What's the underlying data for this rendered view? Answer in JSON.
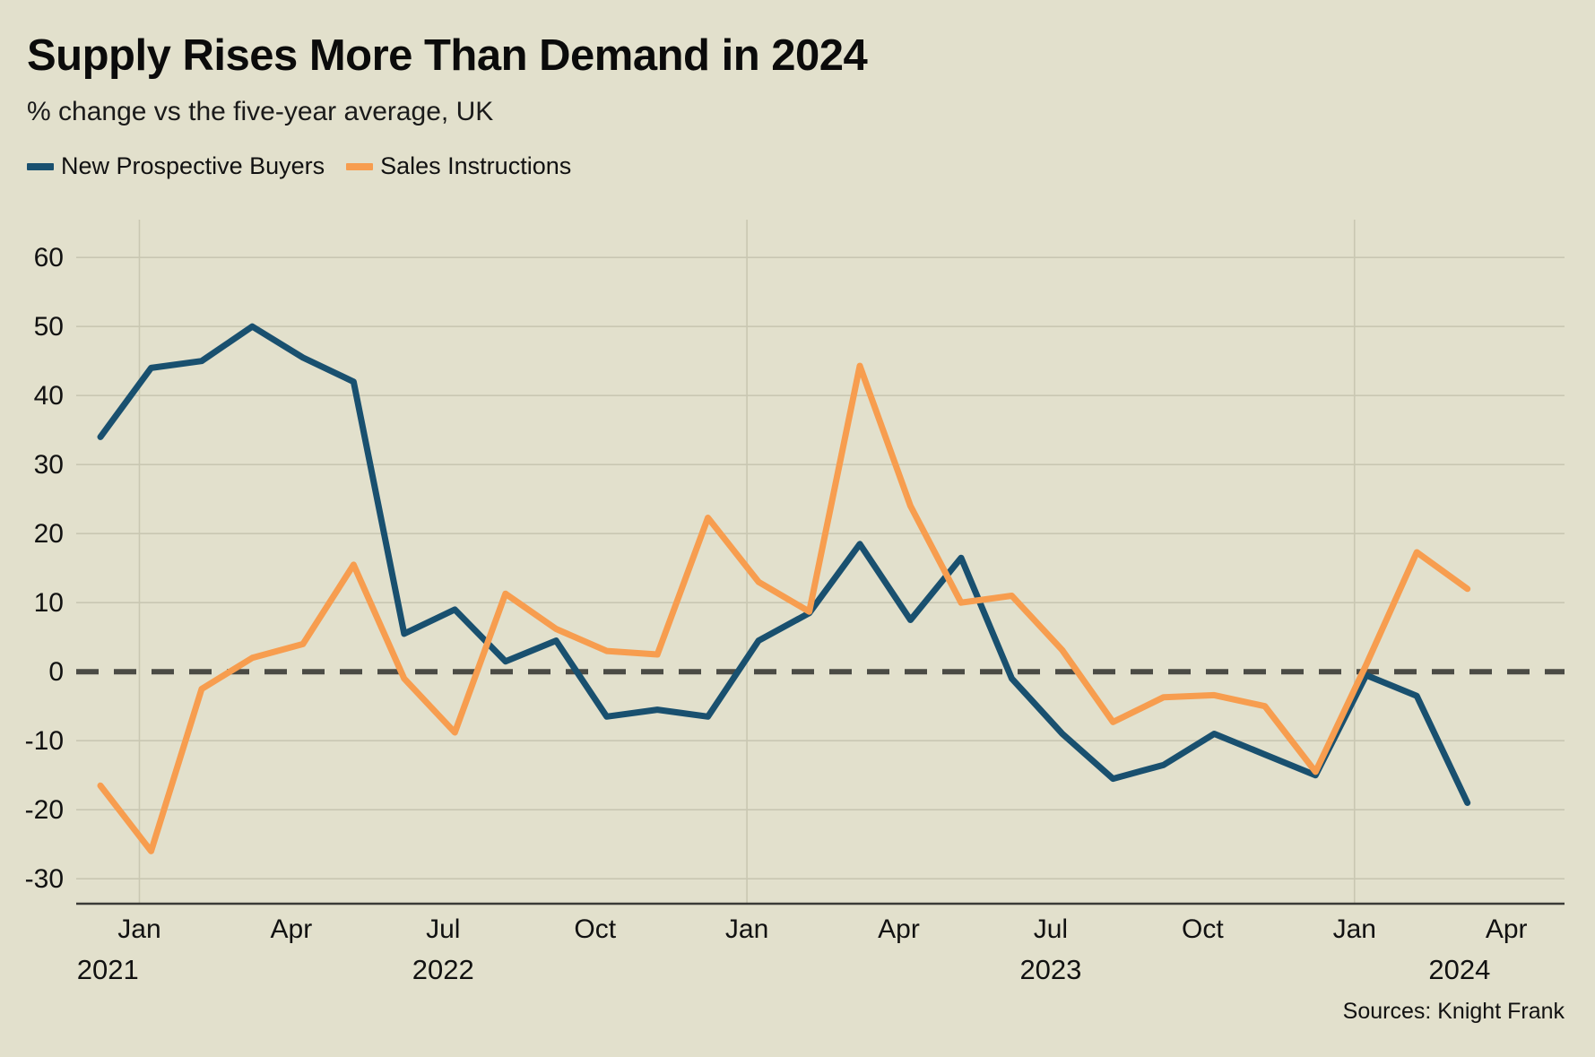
{
  "header": {
    "title": "Supply Rises More Than Demand in 2024",
    "subtitle": "% change vs the five-year average, UK"
  },
  "legend": [
    {
      "label": "New Prospective Buyers",
      "color": "#19506f"
    },
    {
      "label": "Sales Instructions",
      "color": "#f79d4f"
    }
  ],
  "source": "Sources: Knight Frank",
  "chart_data": {
    "type": "line",
    "title": "Supply Rises More Than Demand in 2024",
    "subtitle": "% change vs the five-year average, UK",
    "x": [
      "Dec 2021",
      "Jan 2022",
      "Feb 2022",
      "Mar 2022",
      "Apr 2022",
      "May 2022",
      "Jun 2022",
      "Jul 2022",
      "Aug 2022",
      "Sep 2022",
      "Oct 2022",
      "Nov 2022",
      "Dec 2022",
      "Jan 2023",
      "Feb 2023",
      "Mar 2023",
      "Apr 2023",
      "May 2023",
      "Jun 2023",
      "Jul 2023",
      "Aug 2023",
      "Sep 2023",
      "Oct 2023",
      "Nov 2023",
      "Dec 2023",
      "Jan 2024",
      "Feb 2024",
      "Mar 2024"
    ],
    "series": [
      {
        "name": "New Prospective Buyers",
        "color": "#19506f",
        "values": [
          34,
          44,
          45,
          50,
          45.5,
          42,
          5.5,
          9,
          1.5,
          4.5,
          -6.5,
          -5.5,
          -6.5,
          4.5,
          8.5,
          18.5,
          7.5,
          16.5,
          -1,
          -9,
          -15.5,
          -13.5,
          -9,
          -12,
          -15,
          -0.5,
          -3.5,
          -19
        ]
      },
      {
        "name": "Sales Instructions",
        "color": "#f79d4f",
        "values": [
          -16.5,
          -26,
          -2.5,
          2,
          4,
          15.5,
          -1,
          -8.8,
          11.3,
          6.2,
          3,
          2.5,
          22.3,
          13,
          8.7,
          44.3,
          24,
          10,
          11,
          3.1,
          -7.3,
          -3.7,
          -3.4,
          -5,
          -14.5,
          1,
          17.3,
          12
        ]
      }
    ],
    "ylim": [
      -30,
      60
    ],
    "yticks": [
      60,
      50,
      40,
      30,
      20,
      10,
      0,
      -10,
      -20,
      -30
    ],
    "x_tick_months": [
      {
        "m": 1,
        "label": "Jan"
      },
      {
        "m": 4,
        "label": "Apr"
      },
      {
        "m": 7,
        "label": "Jul"
      },
      {
        "m": 10,
        "label": "Oct"
      },
      {
        "m": 13,
        "label": "Jan"
      },
      {
        "m": 16,
        "label": "Apr"
      },
      {
        "m": 19,
        "label": "Jul"
      },
      {
        "m": 22,
        "label": "Oct"
      },
      {
        "m": 25,
        "label": "Jan"
      },
      {
        "m": 28,
        "label": "Apr"
      }
    ],
    "year_labels": [
      {
        "label": "2021",
        "jan_m": -11
      },
      {
        "label": "2022",
        "jan_m": 1
      },
      {
        "label": "2023",
        "jan_m": 13
      },
      {
        "label": "2024",
        "jan_m": 25
      }
    ],
    "year_gridline_months": [
      1,
      13,
      25
    ],
    "zero_line_dashed": true,
    "grid": "on",
    "legend_position": "top-left",
    "background": "#e2e0cc",
    "grid_color": "#c9c7b2",
    "zero_line_color": "#4b4b45",
    "axis_line_color": "#3a3a36",
    "text_color": "#111111"
  }
}
